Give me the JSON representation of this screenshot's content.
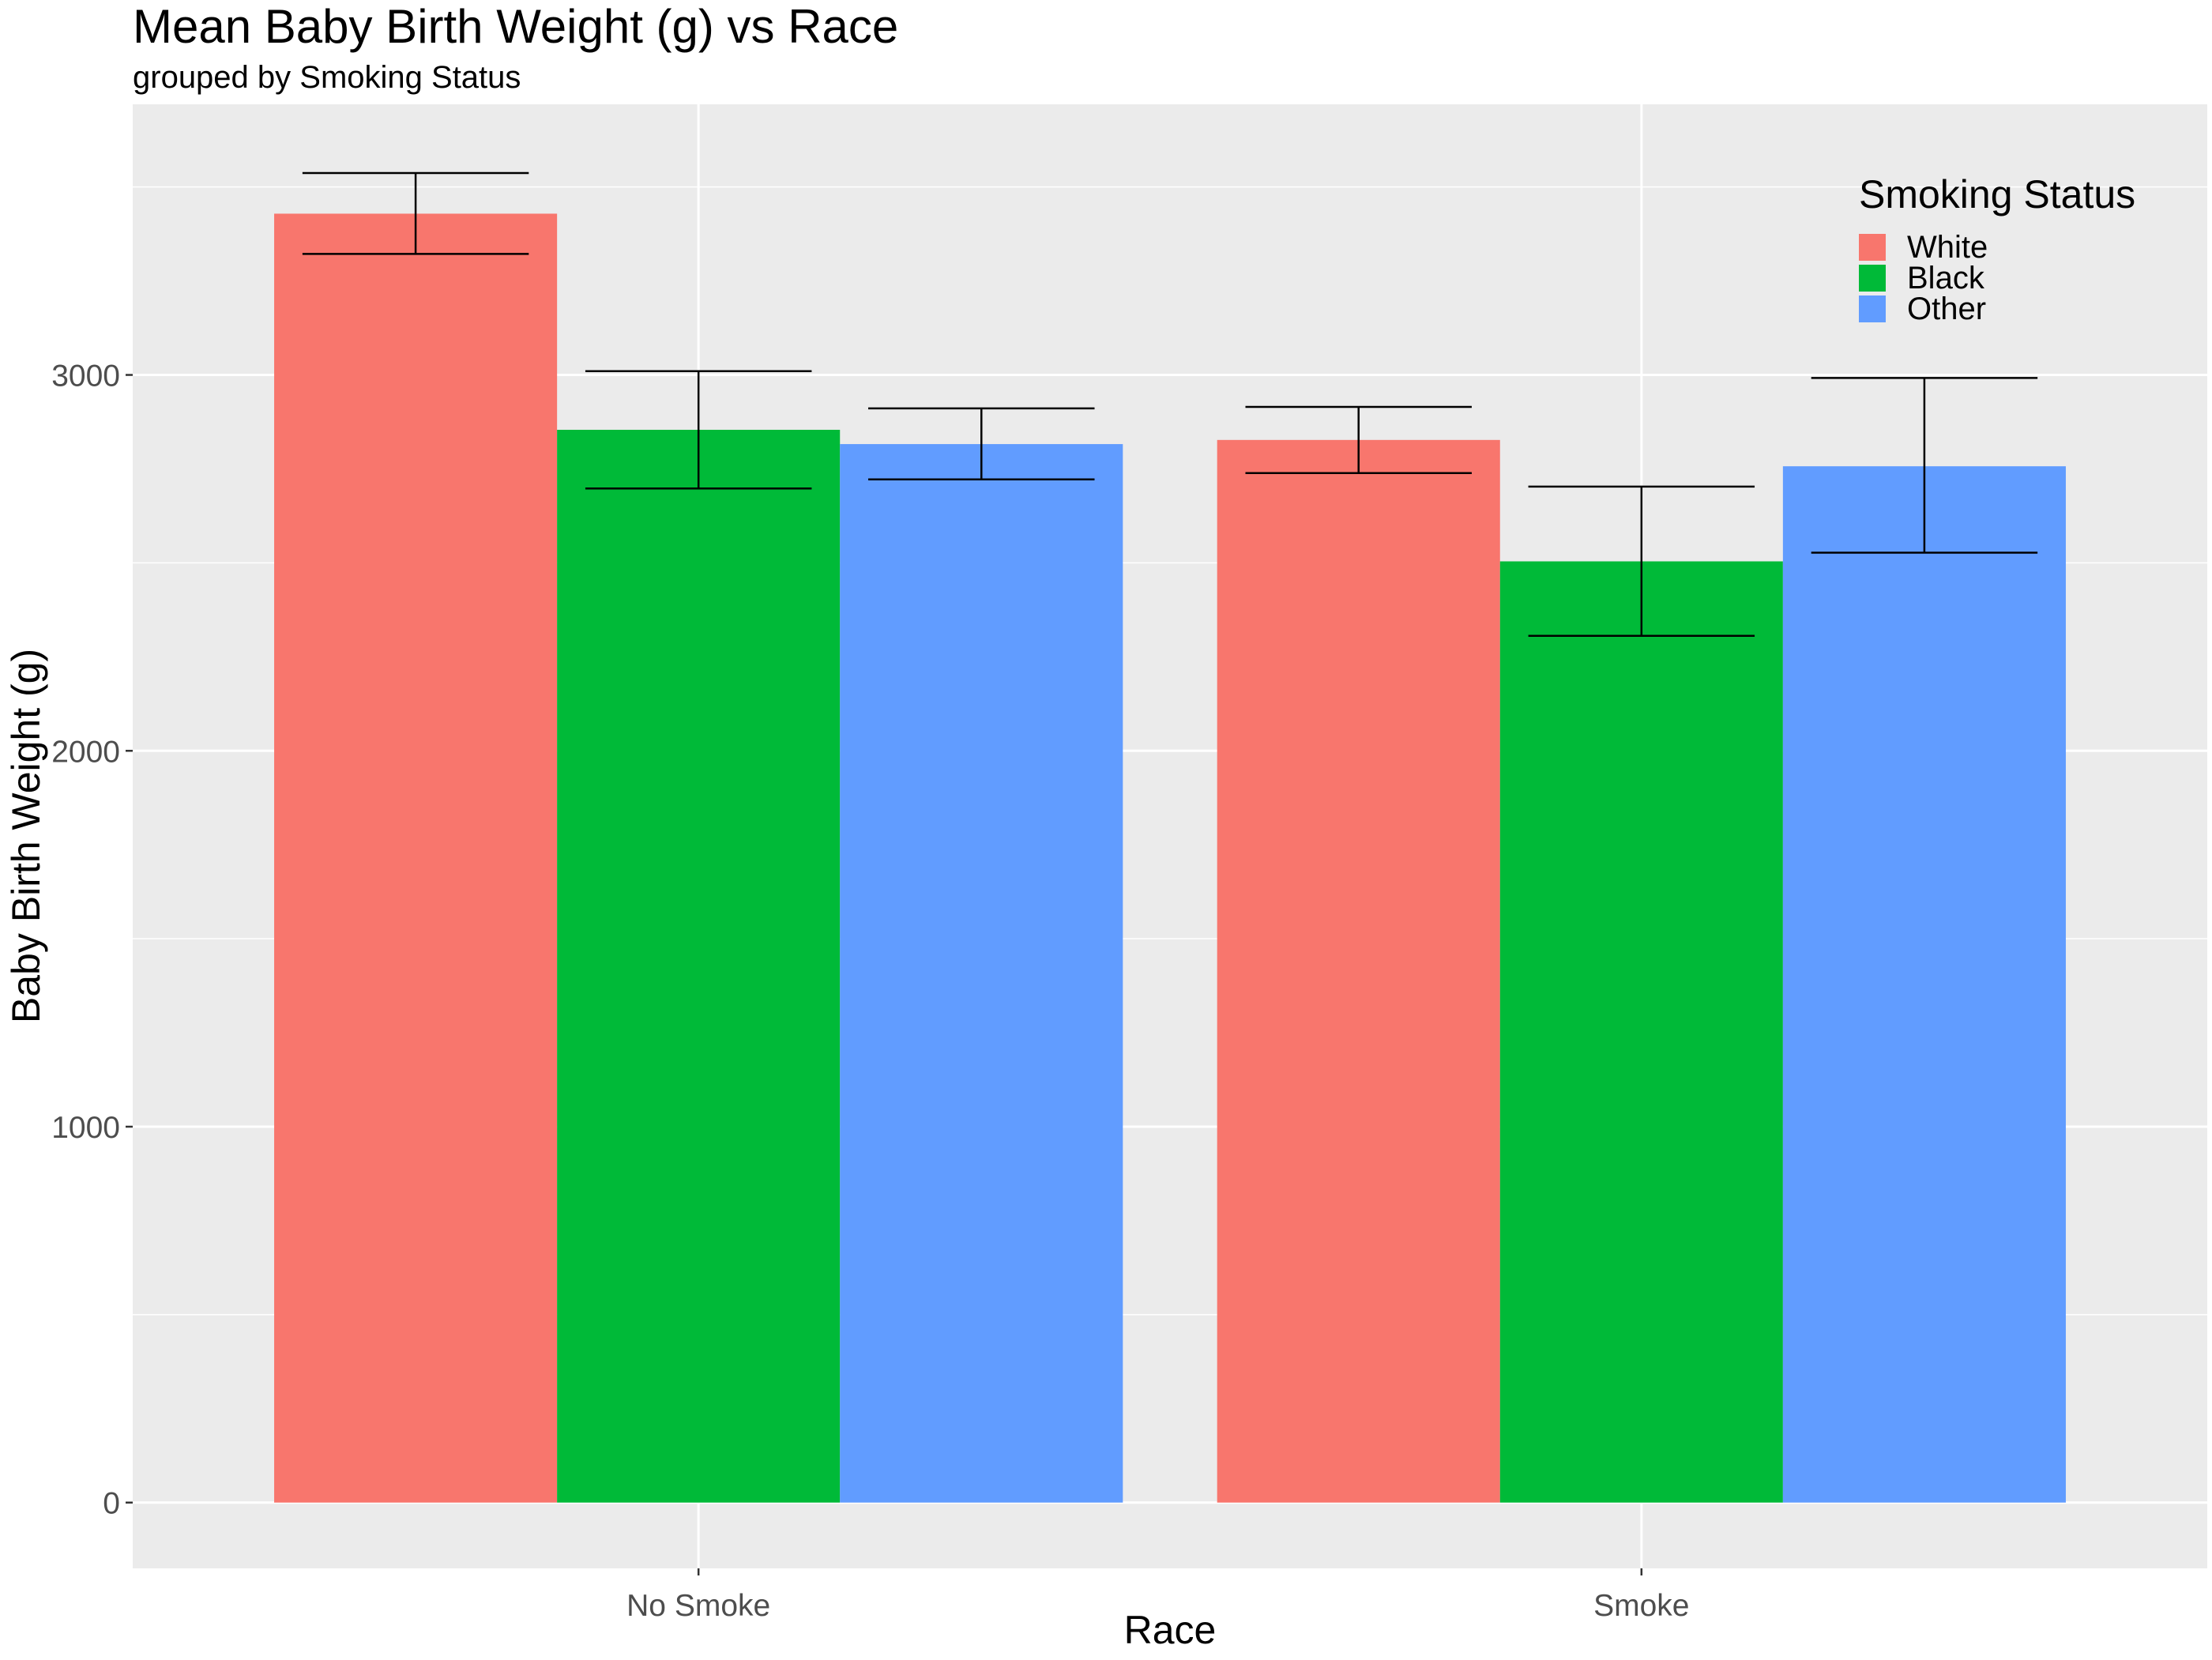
{
  "chart_data": {
    "type": "bar",
    "title": "Mean Baby Birth Weight (g) vs Race",
    "subtitle": "grouped by Smoking Status",
    "xlabel": "Race",
    "ylabel": "Baby Birth Weight (g)",
    "categories": [
      "No Smoke",
      "Smoke"
    ],
    "ylim": [
      -175,
      3720
    ],
    "yticks": [
      0,
      1000,
      2000,
      3000
    ],
    "grid": true,
    "legend": {
      "title": "Smoking Status",
      "position": "top-right"
    },
    "series": [
      {
        "name": "White",
        "color": "#F8766D",
        "values": [
          3429,
          2827
        ],
        "error_low": [
          3322,
          2739
        ],
        "error_high": [
          3537,
          2915
        ]
      },
      {
        "name": "Black",
        "color": "#00BA38",
        "values": [
          2854,
          2504
        ],
        "error_low": [
          2698,
          2306
        ],
        "error_high": [
          3010,
          2703
        ]
      },
      {
        "name": "Other",
        "color": "#619CFF",
        "values": [
          2816,
          2757
        ],
        "error_low": [
          2722,
          2527
        ],
        "error_high": [
          2911,
          2992
        ]
      }
    ]
  }
}
